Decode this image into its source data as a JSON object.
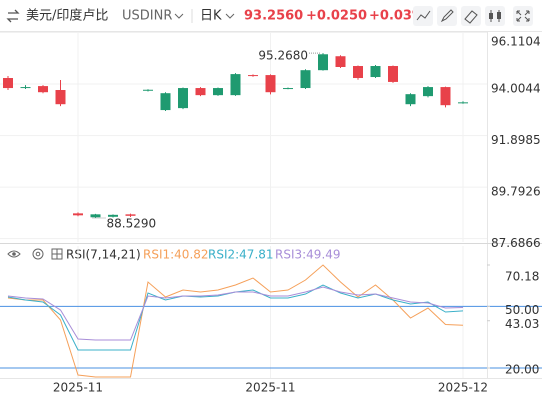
{
  "header": {
    "symbol_name": "美元/印度卢比",
    "symbol": "USDINR",
    "period": "日K",
    "last": "93.2560",
    "change": "+0.0250",
    "change_pct": "+0.03%"
  },
  "chart_data": [
    {
      "type": "candlestick",
      "categories": [
        null,
        null,
        null,
        null,
        "2025-11",
        null,
        null,
        null,
        null,
        null,
        null,
        null,
        null,
        null,
        null,
        "2025-11",
        null,
        null,
        null,
        null,
        null,
        null,
        null,
        null,
        null,
        null,
        "2025-12"
      ],
      "open": [
        94.25,
        93.84,
        93.92,
        93.76,
        88.72,
        88.56,
        88.58,
        88.68,
        93.74,
        92.94,
        93.02,
        93.84,
        93.55,
        93.55,
        94.37,
        94.37,
        93.82,
        93.84,
        94.57,
        95.14,
        94.74,
        94.29,
        94.74,
        93.18,
        93.51,
        93.88,
        93.231
      ],
      "high": [
        94.33,
        93.96,
        93.96,
        94.17,
        88.76,
        88.7,
        88.68,
        88.71,
        93.79,
        93.67,
        93.86,
        93.88,
        93.86,
        94.45,
        94.4,
        94.4,
        93.86,
        94.61,
        95.268,
        95.18,
        94.76,
        94.78,
        94.76,
        93.63,
        93.92,
        93.9,
        93.3
      ],
      "low": [
        93.76,
        93.8,
        93.63,
        93.1,
        88.6,
        88.529,
        88.55,
        88.57,
        93.7,
        92.9,
        92.98,
        93.51,
        93.52,
        93.52,
        94.3,
        93.58,
        93.79,
        93.8,
        94.55,
        94.66,
        94.18,
        94.25,
        94.05,
        93.1,
        93.46,
        93.05,
        93.2
      ],
      "close": [
        93.84,
        93.88,
        93.67,
        93.18,
        88.64,
        88.68,
        88.66,
        88.62,
        93.77,
        93.63,
        93.84,
        93.55,
        93.84,
        94.41,
        94.33,
        93.67,
        93.84,
        94.57,
        95.22,
        94.7,
        94.25,
        94.74,
        94.09,
        93.59,
        93.88,
        93.14,
        93.256
      ],
      "up_color": "#1f9a70",
      "down_color": "#e8414a",
      "ylim": [
        87.55,
        96.13
      ],
      "yticks": [
        96.1104,
        94.0044,
        91.8985,
        89.7926,
        87.6866
      ],
      "grid": true,
      "max_label": {
        "value": 95.268,
        "label": "95.2680"
      },
      "min_label": {
        "value": 88.529,
        "label": "88.5290"
      }
    },
    {
      "type": "line",
      "title": "RSI(7,14,21)",
      "series": [
        {
          "name": "RSI1:40.82",
          "color": "#f5a05a",
          "values": [
            54.1,
            53.12,
            53.12,
            43.38,
            16.59,
            15.62,
            15.62,
            15.62,
            61.89,
            54.58,
            57.99,
            57.02,
            57.99,
            60.43,
            63.84,
            57.02,
            57.99,
            62.86,
            70.18,
            61.89,
            54.58,
            60.43,
            53.12,
            44.35,
            49.23,
            41.2,
            40.82
          ]
        },
        {
          "name": "RSI2:47.81",
          "color": "#3bb0c9",
          "values": [
            54.58,
            53.12,
            52.15,
            45.82,
            28.77,
            28.77,
            28.77,
            28.77,
            56.53,
            53.12,
            55.07,
            54.58,
            55.07,
            57.02,
            57.99,
            54.1,
            54.1,
            56.04,
            60.43,
            56.53,
            54.1,
            56.04,
            53.12,
            51.17,
            52.15,
            47.28,
            47.81
          ]
        },
        {
          "name": "RSI3:49.49",
          "color": "#a88ed8",
          "values": [
            55.07,
            54.1,
            53.61,
            48.25,
            34.13,
            33.64,
            33.64,
            33.64,
            55.07,
            54.1,
            55.07,
            55.07,
            55.56,
            57.02,
            57.02,
            55.07,
            55.07,
            57.02,
            59.45,
            57.02,
            55.56,
            56.04,
            54.1,
            52.15,
            51.66,
            49.23,
            49.49
          ]
        }
      ],
      "ylim": [
        14.16,
        71.64
      ],
      "yticks": [
        70.18,
        {
          "value": 50,
          "label": "50.00"
        },
        43.03,
        {
          "value": 20,
          "label": "20.00"
        }
      ],
      "ref_lines": [
        50,
        20
      ],
      "ref_color": "#4a90e2"
    }
  ]
}
